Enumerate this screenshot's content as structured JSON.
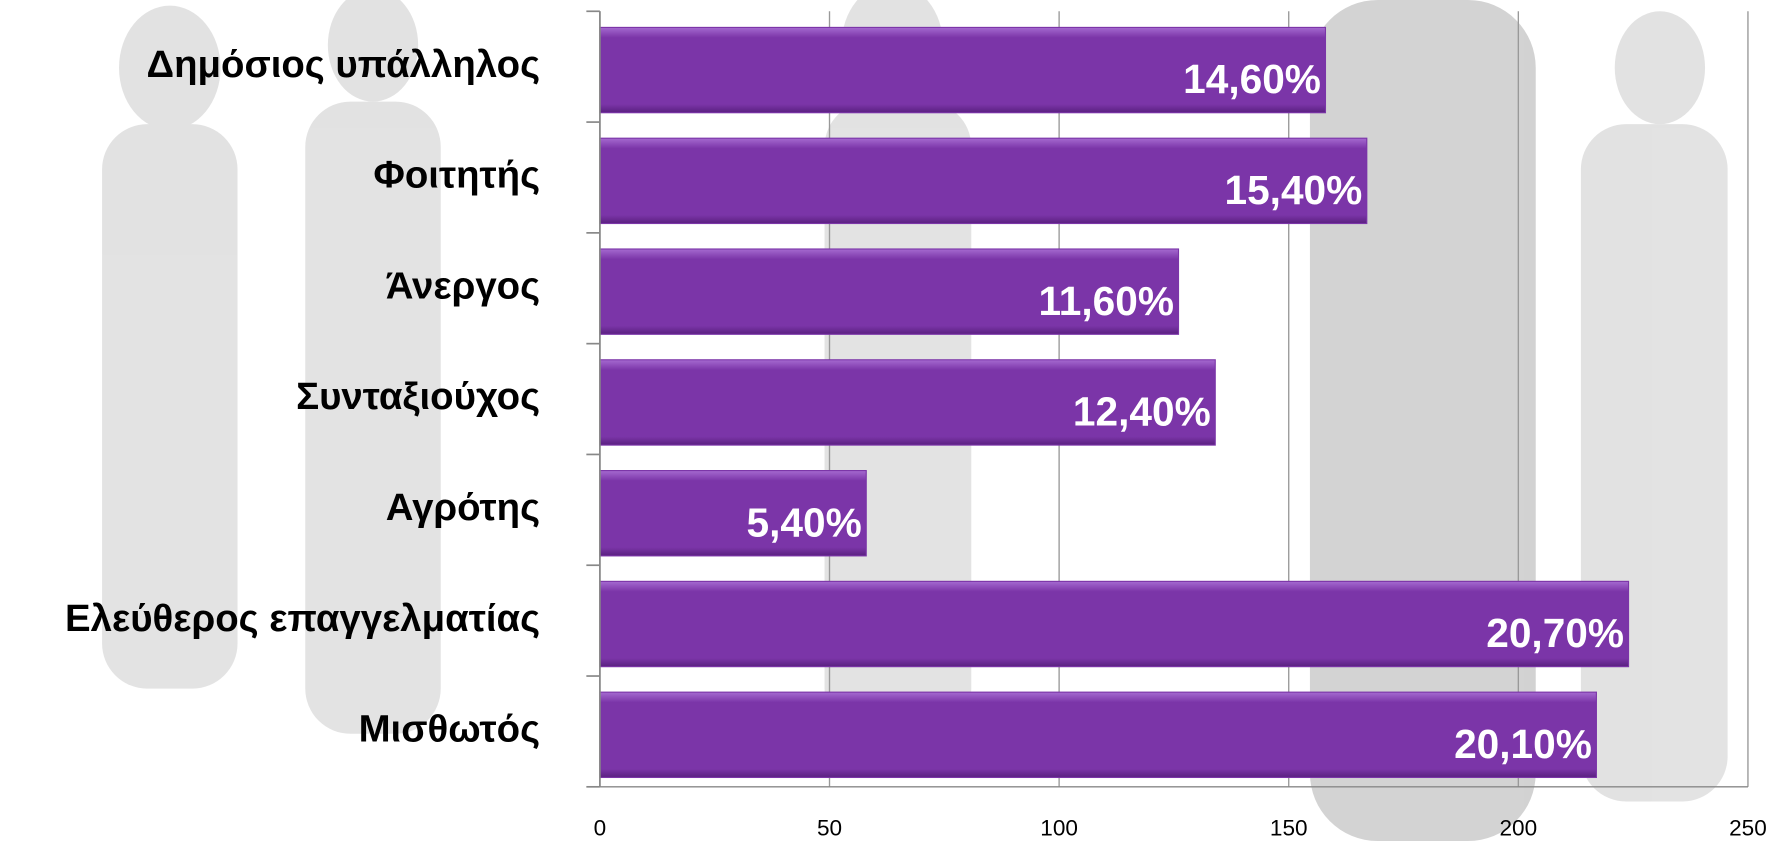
{
  "chart_data": {
    "type": "hbar",
    "categories": [
      "Δημόσιος υπάλληλος",
      "Φοιτητής",
      "Άνεργος",
      "Συνταξιούχος",
      "Αγρότης",
      "Ελεύθερος επαγγελματίας",
      "Μισθωτός"
    ],
    "values": [
      158,
      167,
      126,
      134,
      58,
      224,
      217
    ],
    "data_labels": [
      "14,60%",
      "15,40%",
      "11,60%",
      "12,40%",
      "5,40%",
      "20,70%",
      "20,10%"
    ],
    "color": "#7b35a8",
    "xlim": [
      0,
      250
    ],
    "xticks": [
      0,
      50,
      100,
      150,
      200,
      250
    ],
    "grid": true
  }
}
